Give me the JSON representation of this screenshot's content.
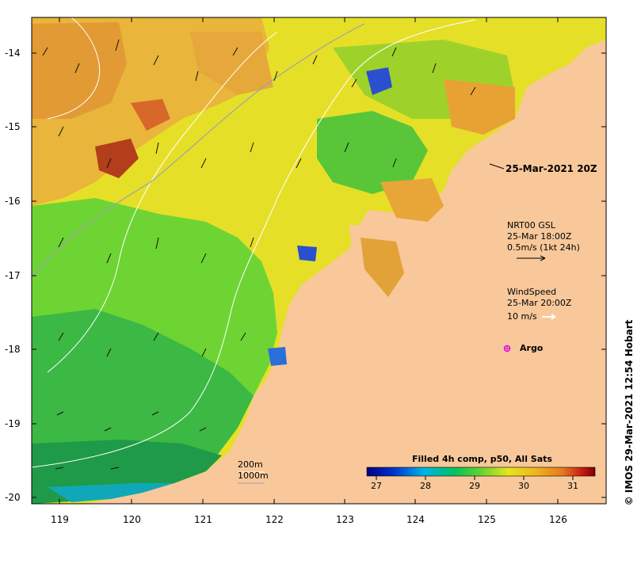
{
  "map": {
    "lat_ticks": [
      "-14",
      "-15",
      "-16",
      "-17",
      "-18",
      "-19",
      "-20"
    ],
    "lon_ticks": [
      "119",
      "120",
      "121",
      "122",
      "123",
      "124",
      "125",
      "126"
    ],
    "colors": {
      "land": "#f8c89a",
      "warm": "#e69a2c",
      "mid": "#eadf1e",
      "cool": "#5cc830",
      "cold": "#1a8c3a",
      "deep": "#2434c8"
    }
  },
  "annotations": {
    "time_label": "25-Mar-2021 20Z",
    "current_title": "NRT00 GSL",
    "current_time": "25-Mar 18:00Z",
    "current_scale": "0.5m/s (1kt 24h)",
    "wind_title": "WindSpeed",
    "wind_time": "25-Mar 20:00Z",
    "wind_scale": "10 m/s",
    "argo_label": "Argo",
    "contour_200": "200m",
    "contour_1000": "1000m",
    "credit": "© IMOS 29-Mar-2021 12:54 Hobart"
  },
  "colorbar": {
    "title": "Filled 4h comp, p50, All Sats",
    "ticks": [
      "27",
      "28",
      "29",
      "30",
      "31"
    ],
    "stops": [
      "#00007f",
      "#0033cc",
      "#00b4e6",
      "#00c060",
      "#64d232",
      "#e6e61e",
      "#f0b41e",
      "#e6781e",
      "#c81e14",
      "#7f0000"
    ]
  }
}
